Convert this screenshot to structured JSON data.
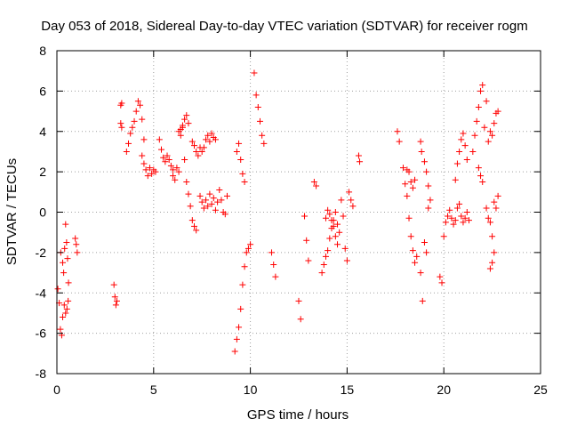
{
  "chart_data": {
    "type": "scatter",
    "title": "Day 053 of 2018, Sidereal Day-to-day VTEC variation (SDTVAR) for receiver rogm",
    "xlabel": "GPS time / hours",
    "ylabel": "SDTVAR / TECUs",
    "xlim": [
      0,
      25
    ],
    "ylim": [
      -8,
      8
    ],
    "xticks": [
      0,
      5,
      10,
      15,
      20,
      25
    ],
    "yticks": [
      -8,
      -6,
      -4,
      -2,
      0,
      2,
      4,
      6,
      8
    ],
    "xtick_labels": [
      "0",
      "5",
      "10",
      "15",
      "20",
      "25"
    ],
    "ytick_labels": [
      "-8",
      "-6",
      "-4",
      "-2",
      "0",
      "2",
      "4",
      "6",
      "8"
    ],
    "grid": true,
    "marker": "+",
    "series": [
      {
        "name": "SDTVAR",
        "color": "#ff0000",
        "segments": [
          {
            "x": [
              0.05,
              0.12,
              0.18,
              0.25,
              0.3,
              0.35,
              0.4,
              0.45,
              0.5,
              0.55,
              0.6
            ],
            "y": [
              -3.8,
              -4.5,
              -5.8,
              -6.1,
              -5.2,
              -3.0,
              -1.8,
              -0.6,
              -1.5,
              -2.3,
              -3.5
            ]
          },
          {
            "x": [
              0.2,
              0.3,
              0.38,
              0.45,
              0.52,
              0.58
            ],
            "y": [
              -2.0,
              -2.5,
              -4.6,
              -5.0,
              -4.8,
              -4.4
            ]
          },
          {
            "x": [
              0.95,
              1.0,
              1.05
            ],
            "y": [
              -1.3,
              -1.6,
              -2.0
            ]
          },
          {
            "x": [
              2.95,
              3.0,
              3.05,
              3.1
            ],
            "y": [
              -3.6,
              -4.2,
              -4.6,
              -4.4
            ]
          },
          {
            "x": [
              3.3,
              3.35
            ],
            "y": [
              5.3,
              5.4
            ]
          },
          {
            "x": [
              3.3,
              3.35
            ],
            "y": [
              4.4,
              4.2
            ]
          },
          {
            "x": [
              3.6,
              3.7,
              3.8,
              3.9,
              4.0,
              4.1,
              4.2,
              4.3,
              4.4,
              4.5
            ],
            "y": [
              3.0,
              3.4,
              3.9,
              4.2,
              4.5,
              5.0,
              5.5,
              5.3,
              4.6,
              3.6
            ]
          },
          {
            "x": [
              4.4,
              4.5,
              4.6,
              4.7,
              4.8,
              4.9,
              5.0,
              5.1
            ],
            "y": [
              2.8,
              2.4,
              2.1,
              1.8,
              2.2,
              1.9,
              2.1,
              2.0
            ]
          },
          {
            "x": [
              5.3,
              5.4,
              5.5,
              5.6,
              5.7,
              5.8,
              5.9,
              6.0
            ],
            "y": [
              3.6,
              3.1,
              2.7,
              2.5,
              2.8,
              2.6,
              2.3,
              2.1
            ]
          },
          {
            "x": [
              6.0,
              6.1,
              6.2,
              6.3,
              6.4,
              6.5
            ],
            "y": [
              1.8,
              1.6,
              2.2,
              2.0,
              3.8,
              4.2
            ]
          },
          {
            "x": [
              6.3,
              6.4,
              6.5,
              6.6,
              6.7,
              6.8
            ],
            "y": [
              4.0,
              4.1,
              4.3,
              4.6,
              4.8,
              4.4
            ]
          },
          {
            "x": [
              6.6,
              6.7,
              6.8,
              6.9,
              7.0,
              7.1,
              7.2
            ],
            "y": [
              2.6,
              1.5,
              0.9,
              0.3,
              -0.4,
              -0.7,
              -0.9
            ]
          },
          {
            "x": [
              7.0,
              7.1,
              7.2,
              7.3,
              7.4
            ],
            "y": [
              3.5,
              3.3,
              3.0,
              2.8,
              3.2
            ]
          },
          {
            "x": [
              7.4,
              7.5,
              7.6,
              7.7,
              7.8,
              7.9,
              8.0,
              8.1,
              8.2,
              8.3
            ],
            "y": [
              0.8,
              0.5,
              0.2,
              0.6,
              0.3,
              0.9,
              0.4,
              0.7,
              0.1,
              0.5
            ]
          },
          {
            "x": [
              7.5,
              7.6,
              7.7,
              7.8,
              7.9,
              8.0,
              8.1,
              8.2
            ],
            "y": [
              3.0,
              3.2,
              3.6,
              3.8,
              3.5,
              3.9,
              3.7,
              3.6
            ]
          },
          {
            "x": [
              8.4,
              8.5,
              8.6,
              8.7,
              8.8
            ],
            "y": [
              1.1,
              0.6,
              0.0,
              -0.1,
              0.8
            ]
          },
          {
            "x": [
              9.2,
              9.3,
              9.4,
              9.5,
              9.6,
              9.7,
              9.8
            ],
            "y": [
              -6.9,
              -6.3,
              -5.7,
              -4.8,
              -3.6,
              -2.7,
              -2.0
            ]
          },
          {
            "x": [
              9.9,
              10.0
            ],
            "y": [
              -1.8,
              -1.6
            ]
          },
          {
            "x": [
              9.3,
              9.4,
              9.5,
              9.6,
              9.7
            ],
            "y": [
              3.0,
              3.4,
              2.6,
              1.9,
              1.5
            ]
          },
          {
            "x": [
              10.2,
              10.3,
              10.4,
              10.5,
              10.6,
              10.7
            ],
            "y": [
              6.9,
              5.8,
              5.2,
              4.5,
              3.8,
              3.4
            ]
          },
          {
            "x": [
              11.1,
              11.2,
              11.3
            ],
            "y": [
              -2.0,
              -2.6,
              -3.2
            ]
          },
          {
            "x": [
              12.5,
              12.6
            ],
            "y": [
              -4.4,
              -5.3
            ]
          },
          {
            "x": [
              12.8,
              12.9,
              13.0
            ],
            "y": [
              -0.2,
              -1.4,
              -2.4
            ]
          },
          {
            "x": [
              13.3,
              13.4
            ],
            "y": [
              1.5,
              1.3
            ]
          },
          {
            "x": [
              13.7,
              13.8,
              13.9,
              14.0,
              14.1,
              14.2,
              14.3,
              14.4,
              14.5
            ],
            "y": [
              -3.0,
              -2.6,
              -2.2,
              -1.9,
              -1.3,
              -0.8,
              -0.4,
              0.0,
              -0.6
            ]
          },
          {
            "x": [
              13.9,
              14.0,
              14.1,
              14.2,
              14.3,
              14.4,
              14.5,
              14.6
            ],
            "y": [
              -0.3,
              0.1,
              -0.1,
              -0.4,
              -0.7,
              -1.2,
              -1.6,
              -1.0
            ]
          },
          {
            "x": [
              14.7,
              14.8,
              14.9,
              15.0
            ],
            "y": [
              0.6,
              -0.2,
              -1.8,
              -2.4
            ]
          },
          {
            "x": [
              15.1,
              15.2,
              15.3
            ],
            "y": [
              1.0,
              0.6,
              0.3
            ]
          },
          {
            "x": [
              15.6,
              15.65
            ],
            "y": [
              2.8,
              2.5
            ]
          },
          {
            "x": [
              17.6,
              17.7
            ],
            "y": [
              4.0,
              3.5
            ]
          },
          {
            "x": [
              17.9,
              18.0,
              18.1,
              18.2,
              18.3,
              18.4,
              18.5
            ],
            "y": [
              2.2,
              1.4,
              0.8,
              -0.3,
              -1.2,
              -1.9,
              -2.5
            ]
          },
          {
            "x": [
              18.1,
              18.2,
              18.3,
              18.4,
              18.5,
              18.6
            ],
            "y": [
              2.1,
              2.0,
              1.5,
              1.2,
              1.6,
              -2.2
            ]
          },
          {
            "x": [
              18.8,
              18.85
            ],
            "y": [
              3.5,
              3.0
            ]
          },
          {
            "x": [
              18.8,
              18.9,
              19.0,
              19.1,
              19.2
            ],
            "y": [
              -3.0,
              -4.4,
              -1.5,
              -2.0,
              0.2
            ]
          },
          {
            "x": [
              19.0,
              19.1,
              19.2,
              19.3
            ],
            "y": [
              2.5,
              2.0,
              1.3,
              0.6
            ]
          },
          {
            "x": [
              19.8,
              19.9
            ],
            "y": [
              -3.2,
              -3.5
            ]
          },
          {
            "x": [
              20.0,
              20.1,
              20.2,
              20.3,
              20.4,
              20.5,
              20.6,
              20.7,
              20.8,
              20.9,
              21.0,
              21.1,
              21.2,
              21.3
            ],
            "y": [
              -1.2,
              -0.5,
              -0.2,
              0.1,
              -0.3,
              -0.6,
              -0.4,
              0.2,
              0.4,
              -0.2,
              -0.5,
              -0.3,
              0.0,
              -0.4
            ]
          },
          {
            "x": [
              20.6,
              20.7,
              20.8,
              20.9,
              21.0,
              21.1,
              21.2
            ],
            "y": [
              1.6,
              2.4,
              3.0,
              3.6,
              3.9,
              3.3,
              2.6
            ]
          },
          {
            "x": [
              21.5,
              21.6,
              21.7,
              21.8,
              21.9,
              22.0
            ],
            "y": [
              3.0,
              3.8,
              4.5,
              5.2,
              6.0,
              6.3
            ]
          },
          {
            "x": [
              21.8,
              21.9,
              22.0,
              22.1,
              22.2
            ],
            "y": [
              2.2,
              1.8,
              1.5,
              4.2,
              5.5
            ]
          },
          {
            "x": [
              22.2,
              22.3,
              22.4,
              22.5,
              22.6
            ],
            "y": [
              0.2,
              -0.3,
              -0.5,
              -1.2,
              -2.0
            ]
          },
          {
            "x": [
              22.3,
              22.4,
              22.5,
              22.6,
              22.7,
              22.8
            ],
            "y": [
              3.5,
              4.0,
              3.8,
              4.4,
              4.9,
              5.0
            ]
          },
          {
            "x": [
              22.4,
              22.5,
              22.6,
              22.7,
              22.8
            ],
            "y": [
              -2.8,
              -2.5,
              0.5,
              0.2,
              0.8
            ]
          }
        ]
      }
    ]
  }
}
